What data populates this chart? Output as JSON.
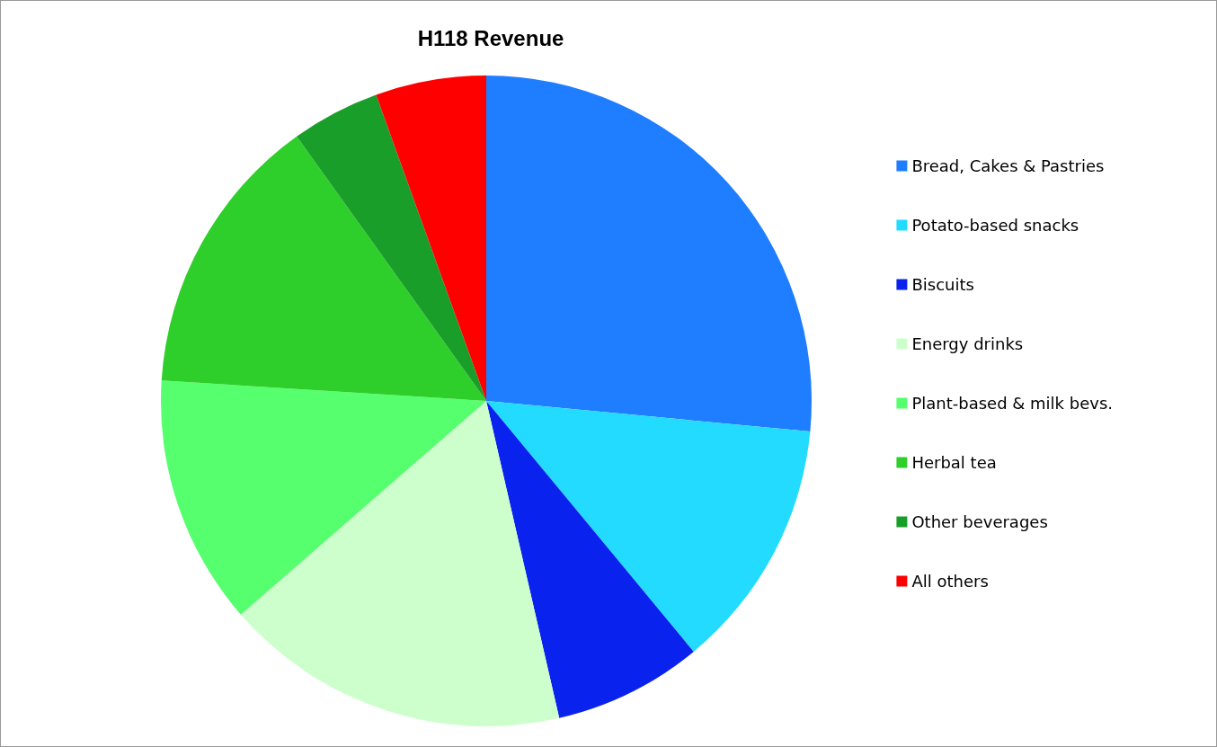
{
  "chart_data": {
    "type": "pie",
    "title": "H118 Revenue",
    "categories": [
      "Bread, Cakes & Pastries",
      "Potato-based snacks",
      "Biscuits",
      "Energy drinks",
      "Plant-based & milk bevs.",
      "Herbal tea",
      "Other beverages",
      "All others"
    ],
    "values": [
      26.5,
      12.5,
      7.4,
      17.2,
      12.4,
      14.1,
      4.4,
      5.5
    ],
    "colors": [
      "#1f7dff",
      "#22dbff",
      "#0a22ee",
      "#ccffcc",
      "#55ff6e",
      "#2ecf2a",
      "#1a9e2a",
      "#ff0000"
    ],
    "legend": "right"
  }
}
